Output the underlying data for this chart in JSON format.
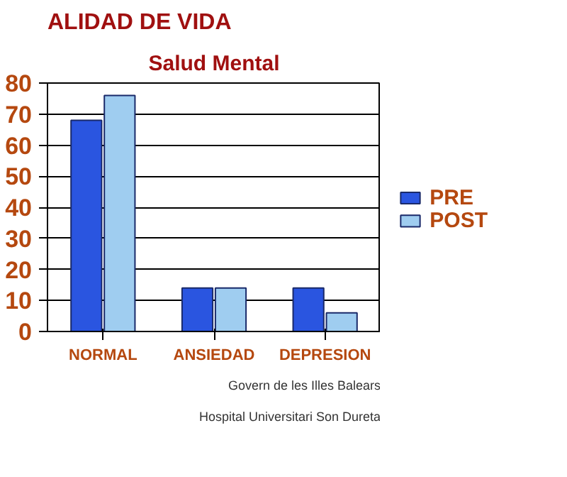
{
  "chart_data": {
    "type": "bar",
    "title": "ALIDAD DE VIDA",
    "subtitle": "Salud Mental",
    "categories": [
      "NORMAL",
      "ANSIEDAD",
      "DEPRESION"
    ],
    "series": [
      {
        "name": "PRE",
        "color": "#2a55e0",
        "values": [
          68,
          14,
          14
        ]
      },
      {
        "name": "POST",
        "color": "#9fcdf0",
        "values": [
          76,
          14,
          6
        ]
      }
    ],
    "ylim": [
      0,
      80
    ],
    "yticks": [
      0,
      10,
      20,
      30,
      40,
      50,
      60,
      70,
      80
    ],
    "grid": "y",
    "legend": "right",
    "annotations": [
      "Govern de les Illes Balears",
      "Hospital Universitari Son Dureta"
    ]
  }
}
